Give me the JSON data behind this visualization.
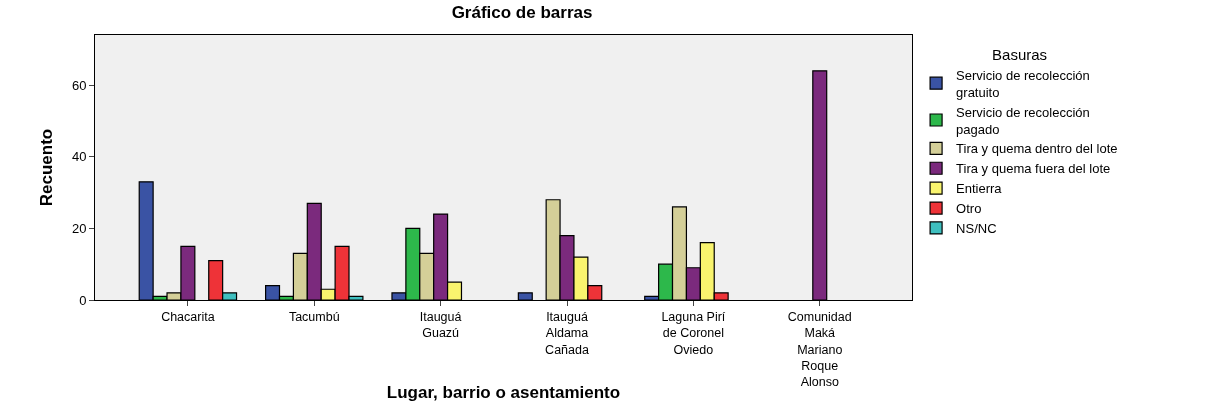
{
  "chart_data": {
    "type": "bar",
    "title": "Gráfico de barras",
    "xlabel": "Lugar, barrio o asentamiento",
    "ylabel": "Recuento",
    "legend_title": "Basuras",
    "categories": [
      "Chacarita",
      "Tacumbú",
      "Itauguá\nGuazú",
      "Itauguá\nAldama\nCañada",
      "Laguna Pirí\nde Coronel\nOviedo",
      "Comunidad\nMaká\nMariano\nRoque\nAlonso"
    ],
    "series": [
      {
        "name": "Servicio de recolección\ngratuito",
        "color": "#3a53a4",
        "values": [
          33,
          4,
          2,
          2,
          1,
          null
        ]
      },
      {
        "name": "Servicio de recolección\npagado",
        "color": "#2db84b",
        "values": [
          1,
          1,
          20,
          null,
          10,
          null
        ]
      },
      {
        "name": "Tira y quema dentro del lote",
        "color": "#d4cf98",
        "values": [
          2,
          13,
          13,
          28,
          26,
          null
        ]
      },
      {
        "name": "Tira y quema fuera del lote",
        "color": "#7b2a7d",
        "values": [
          15,
          27,
          24,
          18,
          9,
          64
        ]
      },
      {
        "name": "Entierra",
        "color": "#f9f46e",
        "values": [
          null,
          3,
          5,
          12,
          16,
          null
        ]
      },
      {
        "name": "Otro",
        "color": "#ee3338",
        "values": [
          11,
          15,
          null,
          4,
          2,
          null
        ]
      },
      {
        "name": "NS/NC",
        "color": "#3fbfbf",
        "values": [
          2,
          1,
          null,
          null,
          null,
          null
        ]
      }
    ],
    "ylim": [
      0,
      74
    ],
    "yticks": [
      0,
      20,
      40,
      60
    ],
    "grid": false,
    "legend": "right"
  }
}
